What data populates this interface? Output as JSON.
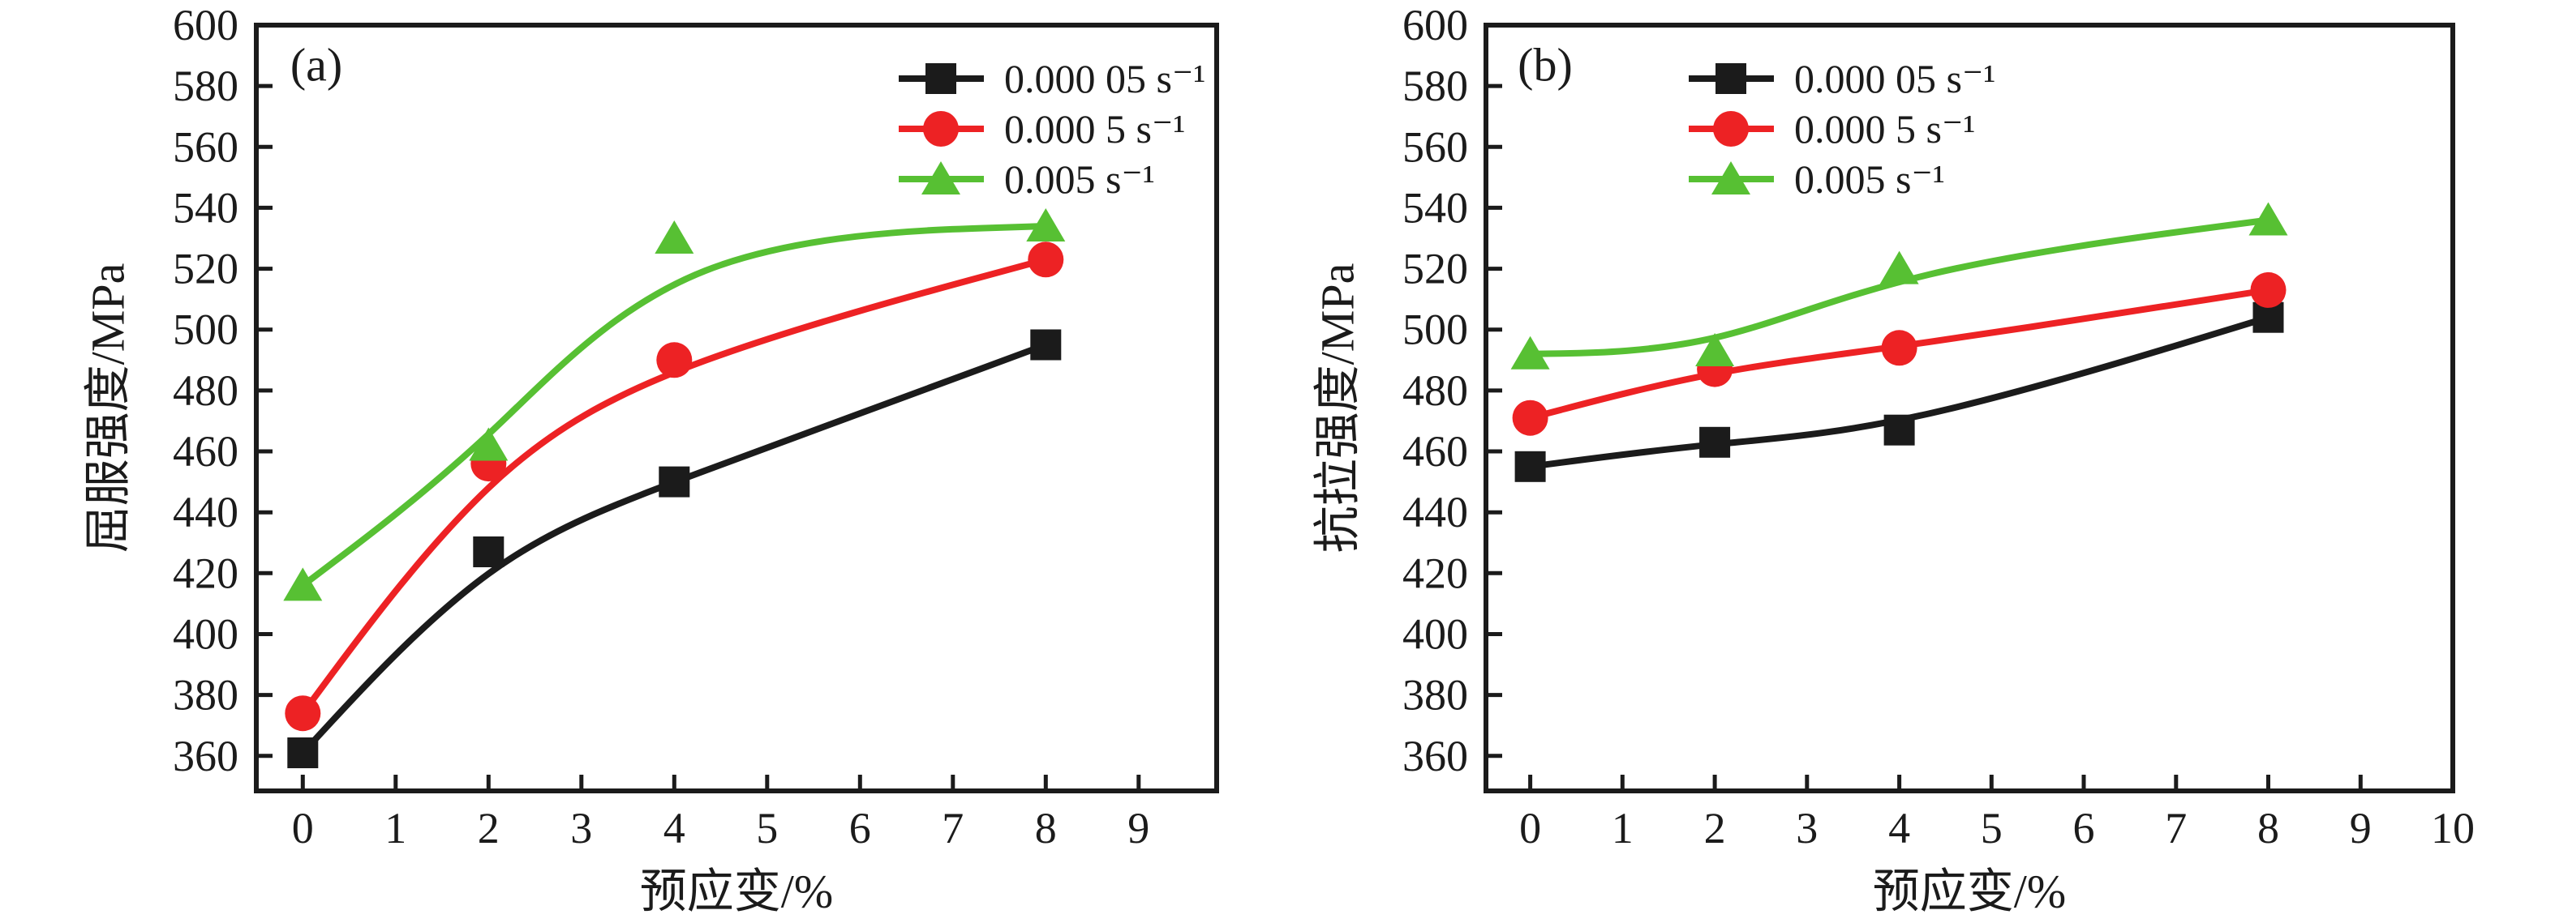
{
  "figure": {
    "background": "#ffffff",
    "panel_labels": [
      "(a)",
      "(b)"
    ]
  },
  "colors": {
    "black_series": "#1b1b1b",
    "red_series": "#ed2224",
    "green_series": "#57c033",
    "axis": "#1b1b1b"
  },
  "chart_data": [
    {
      "type": "line",
      "panel_label": "(a)",
      "xlabel": "预应变/%",
      "ylabel": "屈服强度/MPa",
      "x": [
        0,
        2,
        4,
        8
      ],
      "xticks": [
        0,
        1,
        2,
        3,
        4,
        5,
        6,
        7,
        8,
        9
      ],
      "yticks": [
        360,
        380,
        400,
        420,
        440,
        460,
        480,
        500,
        520,
        540,
        560,
        580,
        600
      ],
      "xlim": [
        -0.5,
        9.84
      ],
      "ylim": [
        348.5,
        600
      ],
      "grid": false,
      "legend_position": "top-right-inside",
      "series": [
        {
          "name": "0.000 05 s⁻¹",
          "color": "#1b1b1b",
          "marker": "square",
          "values": [
            361,
            427,
            450,
            495
          ]
        },
        {
          "name": "0.000 5 s⁻¹",
          "color": "#ed2224",
          "marker": "circle",
          "values": [
            374,
            456,
            490,
            523
          ]
        },
        {
          "name": "0.005 s⁻¹",
          "color": "#57c033",
          "marker": "triangle",
          "values": [
            416,
            462,
            530,
            534
          ]
        }
      ]
    },
    {
      "type": "line",
      "panel_label": "(b)",
      "xlabel": "预应变/%",
      "ylabel": "抗拉强度/MPa",
      "x": [
        0,
        2,
        4,
        8
      ],
      "xticks": [
        0,
        1,
        2,
        3,
        4,
        5,
        6,
        7,
        8,
        9,
        10
      ],
      "yticks": [
        360,
        380,
        400,
        420,
        440,
        460,
        480,
        500,
        520,
        540,
        560,
        580,
        600
      ],
      "xlim": [
        -0.48,
        10
      ],
      "ylim": [
        348.5,
        600
      ],
      "grid": false,
      "legend_position": "top-left-inside",
      "series": [
        {
          "name": "0.000 05 s⁻¹",
          "color": "#1b1b1b",
          "marker": "square",
          "values": [
            455,
            463,
            467,
            504
          ]
        },
        {
          "name": "0.000 5 s⁻¹",
          "color": "#ed2224",
          "marker": "circle",
          "values": [
            471,
            487,
            494,
            513
          ]
        },
        {
          "name": "0.005 s⁻¹",
          "color": "#57c033",
          "marker": "triangle",
          "values": [
            492,
            493,
            520,
            536
          ]
        }
      ]
    }
  ]
}
